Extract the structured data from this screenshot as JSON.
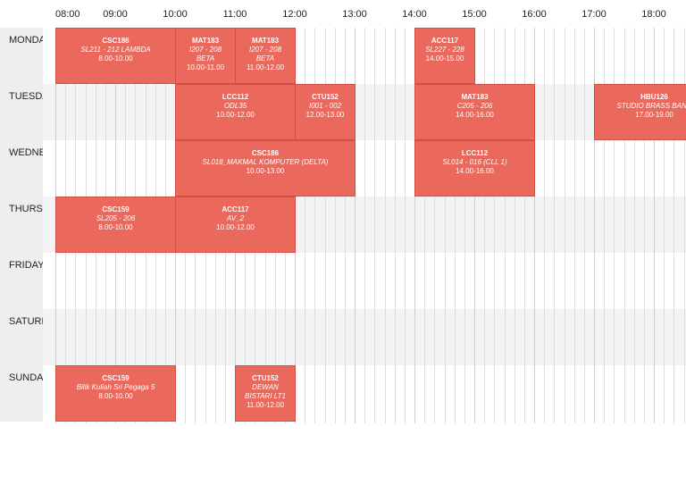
{
  "hours": [
    "08:00",
    "09:00",
    "10:00",
    "11:00",
    "12:00",
    "13:00",
    "14:00",
    "15:00",
    "16:00",
    "17:00",
    "18:00"
  ],
  "days": [
    "MONDAY",
    "TUESDAY",
    "WEDNESDAY",
    "THURSDAY",
    "FRIDAY",
    "SATURDAY",
    "SUNDAY"
  ],
  "events": [
    {
      "day": 0,
      "start": 8,
      "end": 10,
      "code": "CSC186",
      "room": "SL211 - 212 LAMBDA",
      "time": "8.00-10.00"
    },
    {
      "day": 0,
      "start": 10,
      "end": 11,
      "code": "MAT183",
      "room": "I207 - 208\nBETA",
      "time": "10.00-11.00"
    },
    {
      "day": 0,
      "start": 11,
      "end": 12,
      "code": "MAT183",
      "room": "I207 - 208\nBETA",
      "time": "11.00-12.00"
    },
    {
      "day": 0,
      "start": 14,
      "end": 15,
      "code": "ACC117",
      "room": "SL227 - 228",
      "time": "14.00-15.00"
    },
    {
      "day": 1,
      "start": 10,
      "end": 12,
      "code": "LCC112",
      "room": "ODL35",
      "time": "10.00-12.00"
    },
    {
      "day": 1,
      "start": 12,
      "end": 13,
      "code": "CTU152",
      "room": "I001 - 002",
      "time": "12.00-13.00"
    },
    {
      "day": 1,
      "start": 14,
      "end": 16,
      "code": "MAT183",
      "room": "C205 - 206",
      "time": "14.00-16.00"
    },
    {
      "day": 1,
      "start": 17,
      "end": 19,
      "code": "HBU126",
      "room": "STUDIO BRASS BAND",
      "time": "17.00-19.00"
    },
    {
      "day": 2,
      "start": 10,
      "end": 13,
      "code": "CSC186",
      "room": "SL018_MAKMAL KOMPUTER (DELTA)",
      "time": "10.00-13.00"
    },
    {
      "day": 2,
      "start": 14,
      "end": 16,
      "code": "LCC112",
      "room": "SL014 - 016 (CLL 1)",
      "time": "14.00-16.00"
    },
    {
      "day": 3,
      "start": 8,
      "end": 10,
      "code": "CSC159",
      "room": "SL205 - 206",
      "time": "8.00-10.00"
    },
    {
      "day": 3,
      "start": 10,
      "end": 12,
      "code": "ACC117",
      "room": "AV_2",
      "time": "10.00-12.00"
    },
    {
      "day": 6,
      "start": 8,
      "end": 10,
      "code": "CSC159",
      "room": "Bilik Kuliah Sri Pegaga 5",
      "time": "8.00-10.00"
    },
    {
      "day": 6,
      "start": 11,
      "end": 12,
      "code": "CTU152",
      "room": "DEWAN\nBISTARI LT1",
      "time": "11.00-12.00"
    }
  ]
}
